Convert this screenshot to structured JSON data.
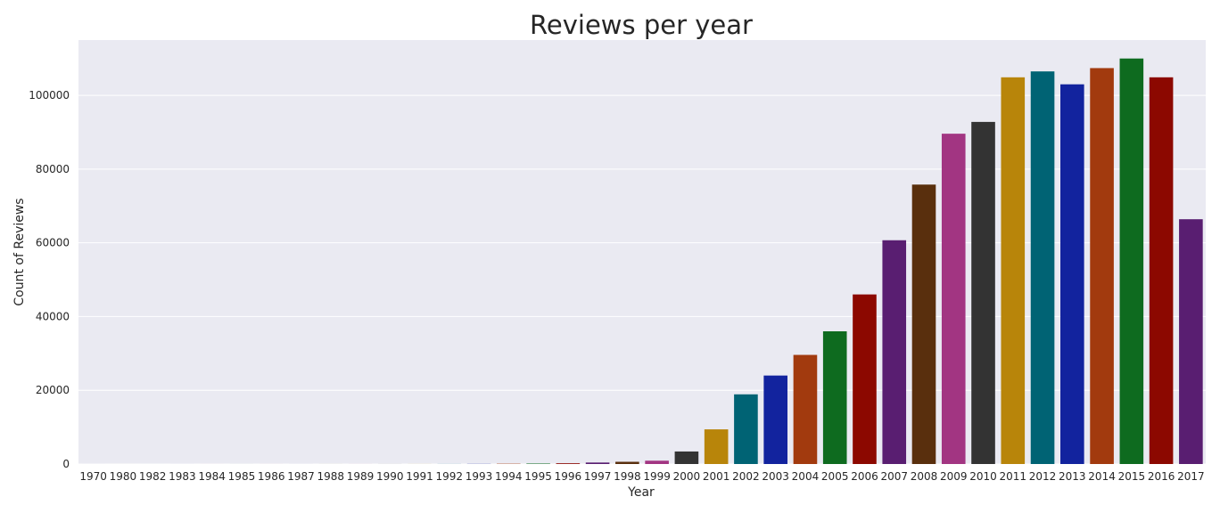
{
  "chart_data": {
    "type": "bar",
    "title": "Reviews per year",
    "xlabel": "Year",
    "ylabel": "Count of Reviews",
    "ylim": [
      0,
      115000
    ],
    "yticks": [
      0,
      20000,
      40000,
      60000,
      80000,
      100000
    ],
    "grid": true,
    "legend": "none",
    "categories": [
      "1970",
      "1980",
      "1982",
      "1983",
      "1984",
      "1985",
      "1986",
      "1987",
      "1988",
      "1989",
      "1990",
      "1991",
      "1992",
      "1993",
      "1994",
      "1995",
      "1996",
      "1997",
      "1998",
      "1999",
      "2000",
      "2001",
      "2002",
      "2003",
      "2004",
      "2005",
      "2006",
      "2007",
      "2008",
      "2009",
      "2010",
      "2011",
      "2012",
      "2013",
      "2014",
      "2015",
      "2016",
      "2017"
    ],
    "values": [
      2,
      3,
      2,
      3,
      3,
      4,
      4,
      5,
      6,
      8,
      10,
      12,
      20,
      40,
      80,
      120,
      200,
      400,
      600,
      900,
      3400,
      9400,
      18900,
      24000,
      29600,
      36000,
      46000,
      60700,
      75800,
      89600,
      92800,
      104900,
      106500,
      103000,
      107400,
      110000,
      104900,
      66400
    ],
    "palette": [
      "#333333",
      "#b8850a",
      "#006374",
      "#12239e",
      "#a23a0e",
      "#0e6b1f",
      "#8c0800",
      "#591e71",
      "#592f0d",
      "#a23582"
    ],
    "background": "#eaeaf2",
    "gridline_color": "#ffffff"
  }
}
